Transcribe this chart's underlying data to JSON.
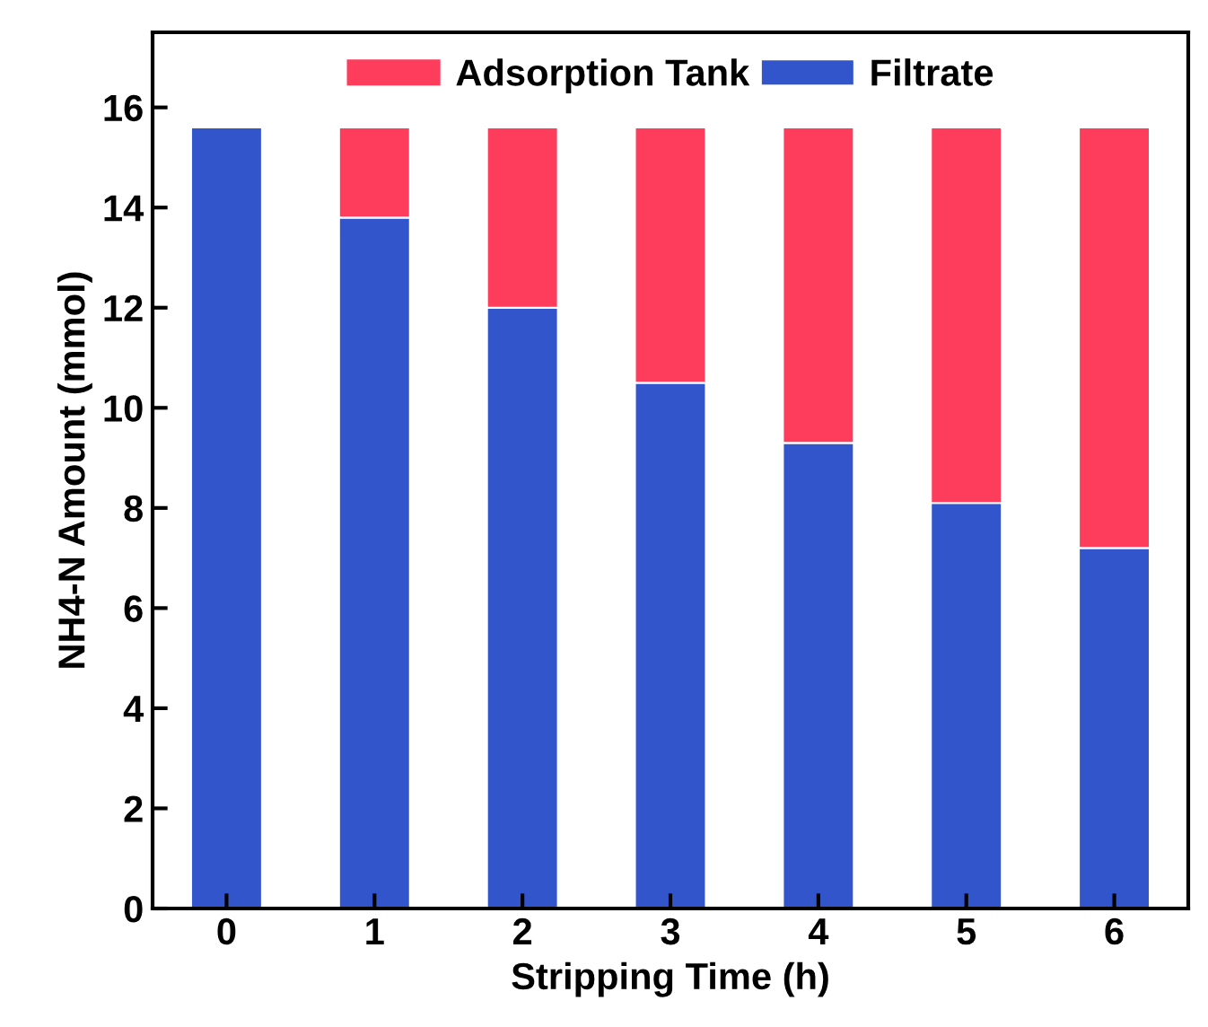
{
  "chart_data": {
    "type": "bar",
    "stacked": true,
    "xlabel": "Stripping Time (h)",
    "ylabel": "NH4-N Amount (mmol)",
    "categories": [
      "0",
      "1",
      "2",
      "3",
      "4",
      "5",
      "6"
    ],
    "series": [
      {
        "name": "Filtrate",
        "color": "#3355cc",
        "values": [
          15.6,
          13.8,
          12.0,
          10.5,
          9.3,
          8.1,
          7.2
        ]
      },
      {
        "name": "Adsorption Tank",
        "color": "#fe3c5c",
        "values": [
          0,
          1.8,
          3.6,
          5.1,
          6.3,
          7.5,
          8.4
        ]
      }
    ],
    "ylim": [
      0,
      17.5
    ],
    "yticks": [
      0,
      2,
      4,
      6,
      8,
      10,
      12,
      14,
      16
    ],
    "grid": false,
    "legend": "top"
  }
}
